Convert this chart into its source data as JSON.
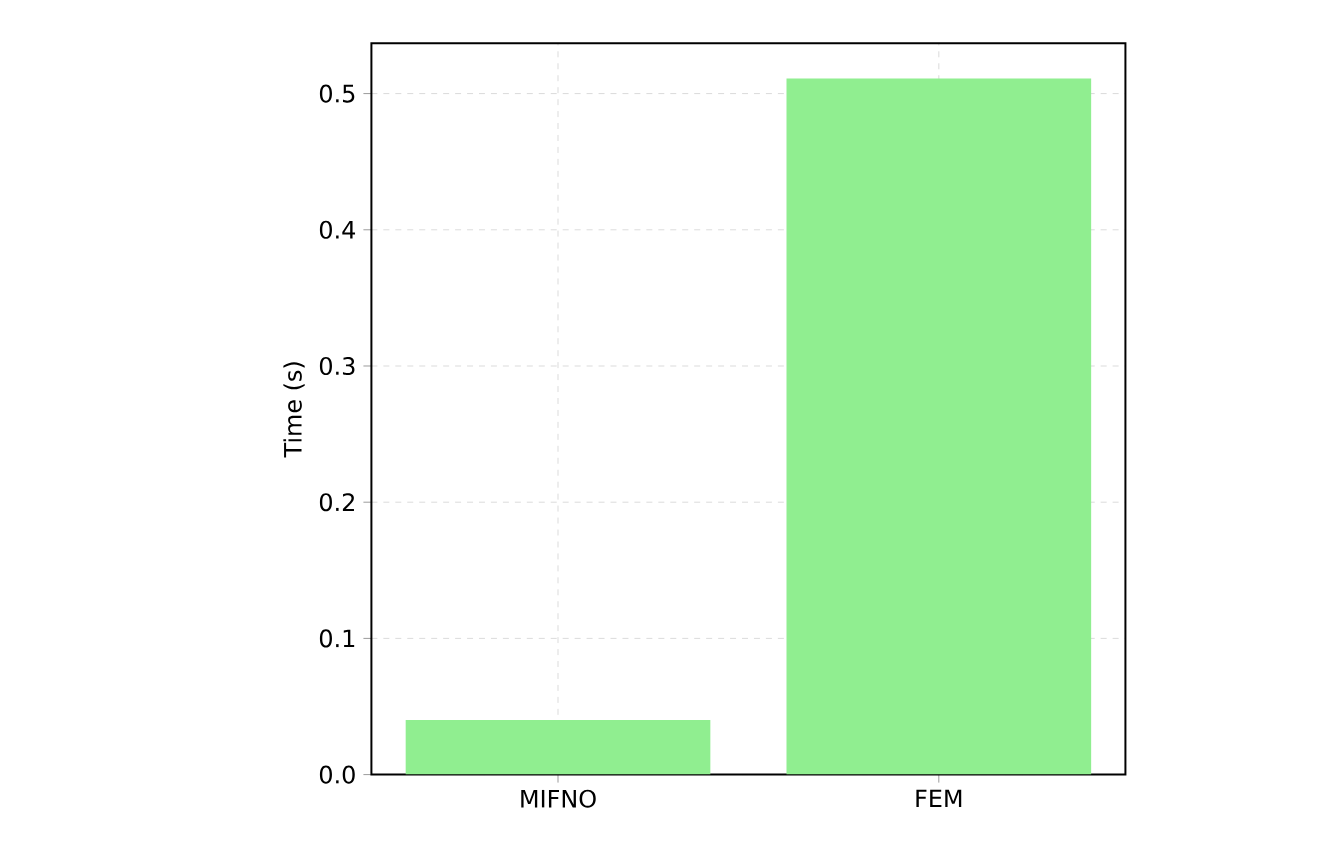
{
  "chart_data": {
    "type": "bar",
    "ylabel": "Time (s)",
    "categories": [
      "MIFNO",
      "FEM"
    ],
    "values": [
      0.04,
      0.511
    ],
    "color": "#90ee90",
    "ylim": [
      0,
      0.537
    ],
    "yticks": [
      {
        "value": 0,
        "label": "0.0"
      },
      0.1,
      0.2,
      0.3,
      0.4,
      0.5
    ],
    "grid": true
  }
}
